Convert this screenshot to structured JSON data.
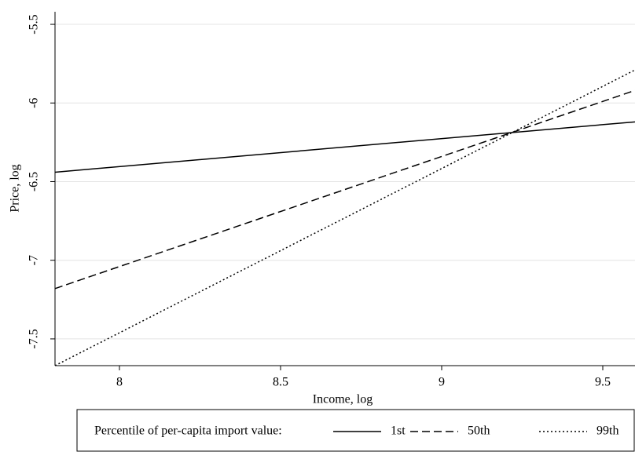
{
  "chart_data": {
    "type": "line",
    "x_label": "Income, log",
    "y_label": "Price, log",
    "legend_title": "Percentile of per-capita import value:",
    "x": [
      7.8,
      9.6
    ],
    "series": [
      {
        "name": "1st",
        "color": "#000000",
        "style": "solid",
        "values": [
          -6.44,
          -6.12
        ]
      },
      {
        "name": "50th",
        "color": "#000000",
        "style": "dashed",
        "values": [
          -7.18,
          -5.92
        ]
      },
      {
        "name": "99th",
        "color": "#000000",
        "style": "dotted",
        "values": [
          -7.67,
          -5.79
        ]
      }
    ],
    "xlim": [
      7.8,
      9.6
    ],
    "xticks": [
      8,
      8.5,
      9,
      9.5
    ],
    "ylim": [
      -7.67,
      -5.42
    ],
    "yticks": [
      -7.5,
      -7,
      -6.5,
      -6,
      -5.5
    ],
    "grid": true,
    "legend": "bottom"
  }
}
